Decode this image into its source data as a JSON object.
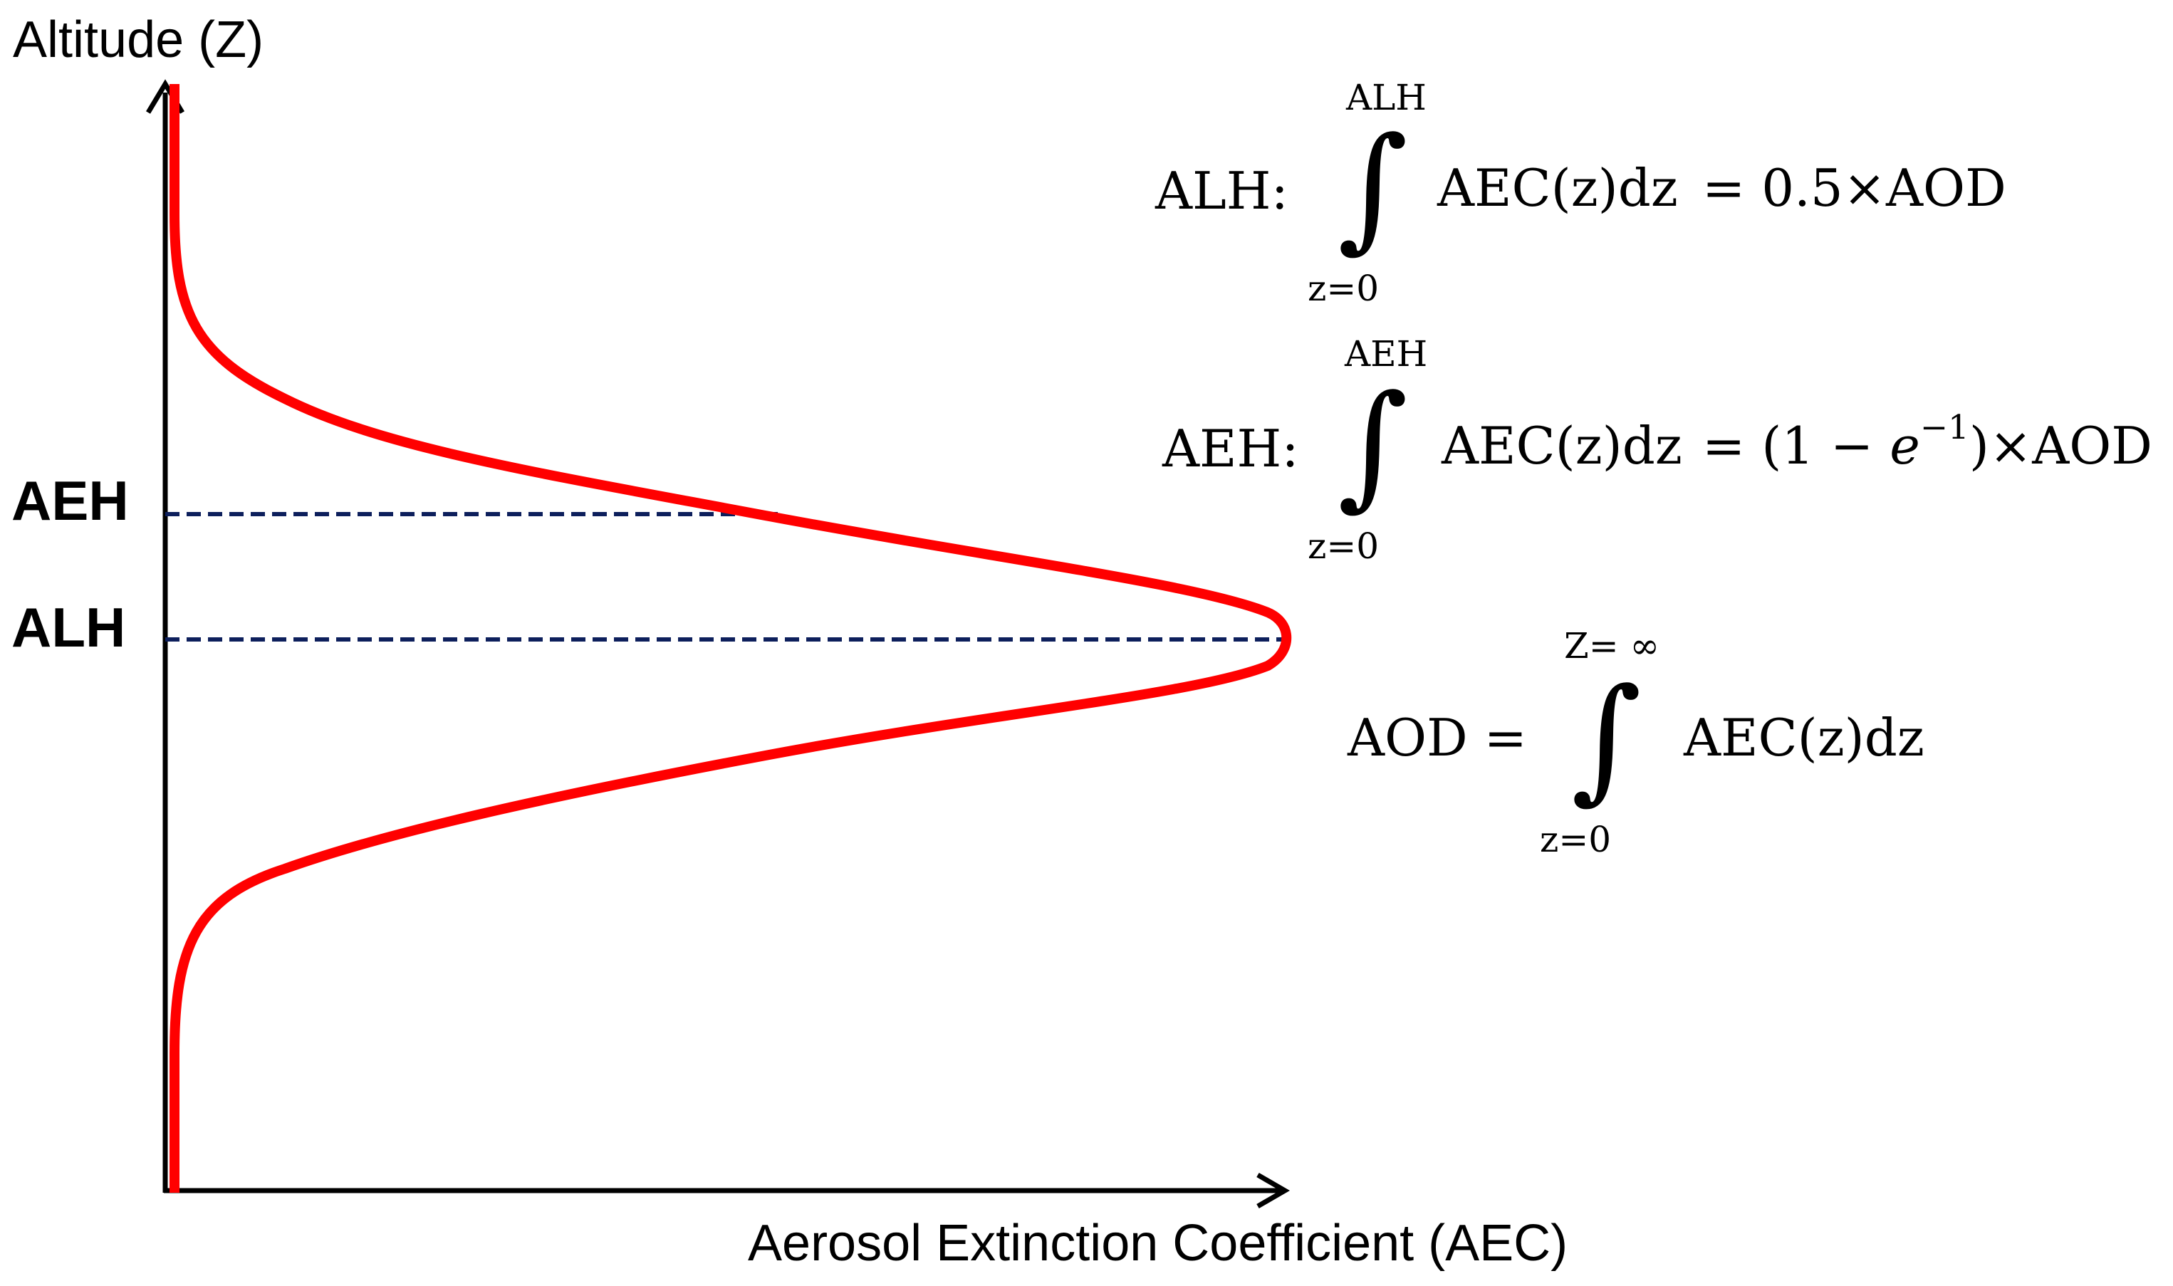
{
  "axes": {
    "y_title": "Altitude (Z)",
    "x_title": "Aerosol Extinction Coefficient (AEC)"
  },
  "levels": {
    "aeh": "AEH",
    "alh": "ALH"
  },
  "equations": {
    "alh": {
      "name": "ALH:",
      "upper_limit": "ALH",
      "lower_limit": "z=0",
      "integrand": "AEC(z)dz",
      "rhs": "= 0.5×AOD"
    },
    "aeh": {
      "name": "AEH:",
      "upper_limit": "AEH",
      "lower_limit": "z=0",
      "integrand": "AEC(z)dz",
      "rhs_prefix": "= (1 − ",
      "rhs_e": "e",
      "rhs_exponent": "−1",
      "rhs_suffix": ")×AOD"
    },
    "aod": {
      "lhs": "AOD =",
      "upper_limit": "Z= ∞",
      "lower_limit": "z=0",
      "integrand": "AEC(z)dz"
    },
    "integral_symbol": "∫"
  },
  "colors": {
    "profile_curve": "#ff0000",
    "dashed_lines": "#0d1f5c",
    "axes": "#000000"
  }
}
